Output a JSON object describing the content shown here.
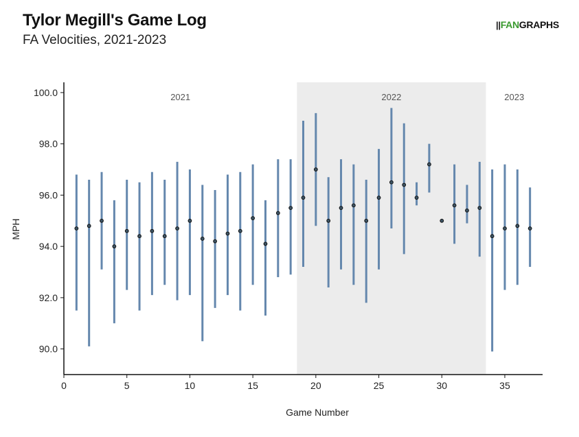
{
  "header": {
    "title": "Tylor Megill's Game Log",
    "subtitle": "FA Velocities, 2021-2023",
    "logo_mark": "||",
    "logo_fan": "FAN",
    "logo_graphs": "GRAPHS"
  },
  "colors": {
    "bar": "#6487ad",
    "point_fill": "#3d5566",
    "point_stroke": "#111111",
    "shade": "#ececec",
    "logo_green": "#3a9a2f"
  },
  "chart_data": {
    "type": "range",
    "title": "Tylor Megill's Game Log",
    "subtitle": "FA Velocities, 2021-2023",
    "xlabel": "Game Number",
    "ylabel": "MPH",
    "xlim": [
      0,
      38
    ],
    "ylim": [
      89,
      100.4
    ],
    "xticks": [
      0,
      5,
      10,
      15,
      20,
      25,
      30,
      35
    ],
    "yticks": [
      90,
      92,
      94,
      96,
      98,
      100
    ],
    "ytick_labels": [
      "90.0",
      "92.0",
      "94.0",
      "96.0",
      "98.0",
      "100.0"
    ],
    "grid": false,
    "seasons": [
      {
        "label": "2021",
        "start": 0,
        "end": 18.5,
        "shaded": false
      },
      {
        "label": "2022",
        "start": 18.5,
        "end": 33.5,
        "shaded": true
      },
      {
        "label": "2023",
        "start": 33.5,
        "end": 38,
        "shaded": false
      }
    ],
    "games": [
      {
        "x": 1,
        "min": 91.5,
        "max": 96.8,
        "avg": 94.7
      },
      {
        "x": 2,
        "min": 90.1,
        "max": 96.6,
        "avg": 94.8
      },
      {
        "x": 3,
        "min": 93.1,
        "max": 96.9,
        "avg": 95.0
      },
      {
        "x": 4,
        "min": 91.0,
        "max": 95.8,
        "avg": 94.0
      },
      {
        "x": 5,
        "min": 92.3,
        "max": 96.6,
        "avg": 94.6
      },
      {
        "x": 6,
        "min": 91.5,
        "max": 96.5,
        "avg": 94.4
      },
      {
        "x": 7,
        "min": 92.1,
        "max": 96.9,
        "avg": 94.6
      },
      {
        "x": 8,
        "min": 92.5,
        "max": 96.6,
        "avg": 94.4
      },
      {
        "x": 9,
        "min": 91.9,
        "max": 97.3,
        "avg": 94.7
      },
      {
        "x": 10,
        "min": 92.1,
        "max": 97.0,
        "avg": 95.0
      },
      {
        "x": 11,
        "min": 90.3,
        "max": 96.4,
        "avg": 94.3
      },
      {
        "x": 12,
        "min": 91.6,
        "max": 96.2,
        "avg": 94.2
      },
      {
        "x": 13,
        "min": 92.1,
        "max": 96.8,
        "avg": 94.5
      },
      {
        "x": 14,
        "min": 91.5,
        "max": 96.9,
        "avg": 94.6
      },
      {
        "x": 15,
        "min": 92.5,
        "max": 97.2,
        "avg": 95.1
      },
      {
        "x": 16,
        "min": 91.3,
        "max": 95.8,
        "avg": 94.1
      },
      {
        "x": 17,
        "min": 92.8,
        "max": 97.4,
        "avg": 95.3
      },
      {
        "x": 18,
        "min": 92.9,
        "max": 97.4,
        "avg": 95.5
      },
      {
        "x": 19,
        "min": 93.2,
        "max": 98.9,
        "avg": 95.9
      },
      {
        "x": 20,
        "min": 94.8,
        "max": 99.2,
        "avg": 97.0
      },
      {
        "x": 21,
        "min": 92.4,
        "max": 96.7,
        "avg": 95.0
      },
      {
        "x": 22,
        "min": 93.1,
        "max": 97.4,
        "avg": 95.5
      },
      {
        "x": 23,
        "min": 92.5,
        "max": 97.2,
        "avg": 95.6
      },
      {
        "x": 24,
        "min": 91.8,
        "max": 96.6,
        "avg": 95.0
      },
      {
        "x": 25,
        "min": 93.1,
        "max": 97.8,
        "avg": 95.9
      },
      {
        "x": 26,
        "min": 94.7,
        "max": 99.4,
        "avg": 96.5
      },
      {
        "x": 27,
        "min": 93.7,
        "max": 98.8,
        "avg": 96.4
      },
      {
        "x": 28,
        "min": 95.6,
        "max": 96.5,
        "avg": 95.9
      },
      {
        "x": 29,
        "min": 96.1,
        "max": 98.0,
        "avg": 97.2
      },
      {
        "x": 30,
        "min": 95.0,
        "max": 95.0,
        "avg": 95.0
      },
      {
        "x": 31,
        "min": 94.1,
        "max": 97.2,
        "avg": 95.6
      },
      {
        "x": 32,
        "min": 94.9,
        "max": 96.4,
        "avg": 95.4
      },
      {
        "x": 33,
        "min": 93.6,
        "max": 97.3,
        "avg": 95.5
      },
      {
        "x": 34,
        "min": 89.9,
        "max": 97.0,
        "avg": 94.4
      },
      {
        "x": 35,
        "min": 92.3,
        "max": 97.2,
        "avg": 94.7
      },
      {
        "x": 36,
        "min": 92.5,
        "max": 97.0,
        "avg": 94.8
      },
      {
        "x": 37,
        "min": 93.2,
        "max": 96.3,
        "avg": 94.7
      }
    ]
  }
}
